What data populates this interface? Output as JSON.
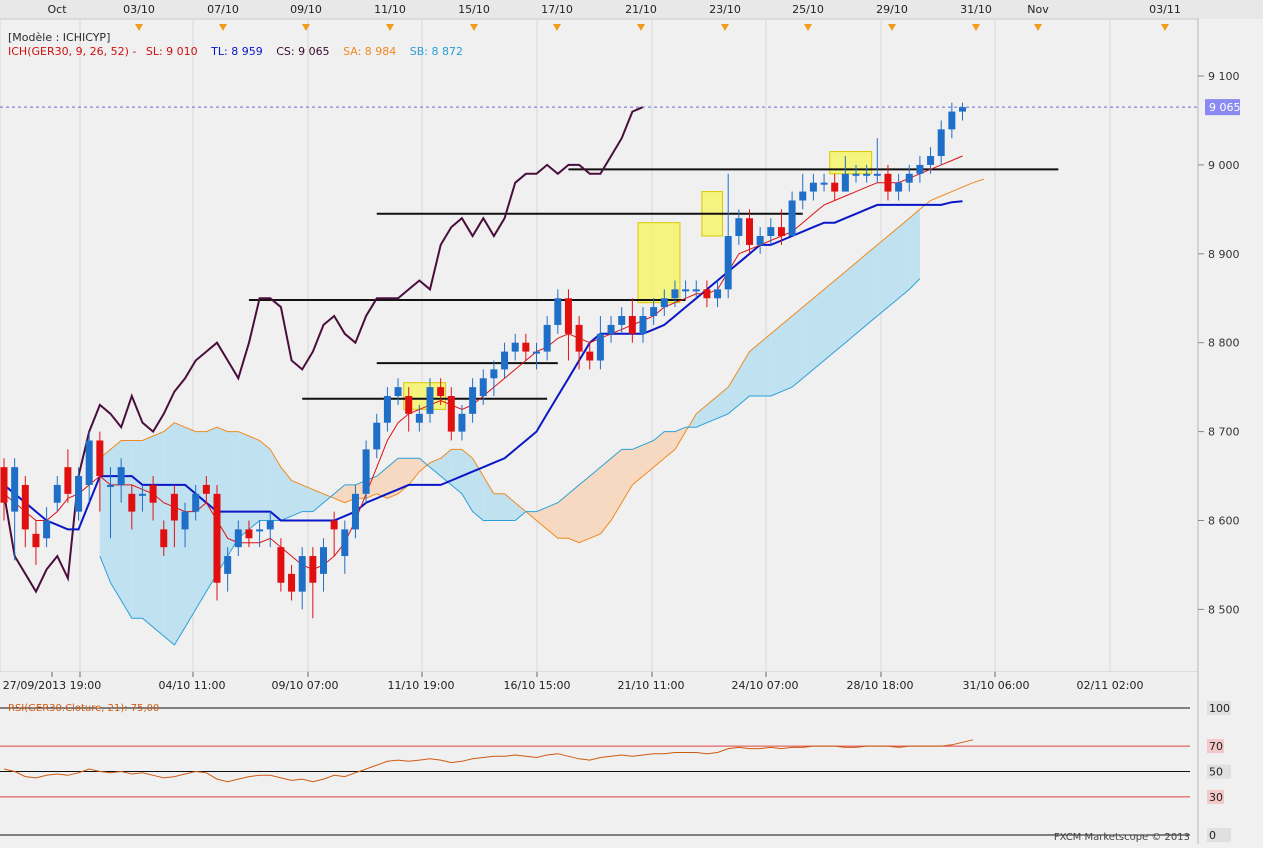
{
  "model_label": "[Modèle : ICHICYP]",
  "ichimoku": {
    "name": "ICH(GER30, 9, 26, 52)",
    "sl_label": "SL: 9 010",
    "tl_label": "TL: 8 959",
    "cs_label": "CS: 9 065",
    "sa_label": "SA: 8 984",
    "sb_label": "SB: 8 872"
  },
  "rsi_label": "RSI(GER30.Cloture, 21): 75,00",
  "footer": "FXCM Marketscope © 2013",
  "price_tag": "9 065",
  "top_dates": [
    "Oct",
    "03/10",
    "07/10",
    "09/10",
    "11/10",
    "15/10",
    "17/10",
    "21/10",
    "23/10",
    "25/10",
    "29/10",
    "31/10",
    "Nov",
    "03/11"
  ],
  "bottom_dates": [
    "27/09/2013 19:00",
    "04/10 11:00",
    "09/10 07:00",
    "11/10 19:00",
    "16/10 15:00",
    "21/10 11:00",
    "24/10 07:00",
    "28/10 18:00",
    "31/10 06:00",
    "02/11 02:00"
  ],
  "rsi_ticks": [
    "100",
    "70",
    "50",
    "30",
    "0"
  ],
  "colors": {
    "background": "#f0f0f0",
    "bull_candle": "#1f6ec8",
    "bear_candle": "#e01010",
    "tenkan": "#e01010",
    "kijun": "#0a17c8",
    "chikou": "#4a0e3c",
    "cloud_bull": "#bfe1f0",
    "cloud_bear": "#f6d9c0",
    "senkou_a": "#f08a1f",
    "senkou_b": "#2aa0d8",
    "rsi_line": "#d05a10",
    "highlight": "#f4f46a"
  },
  "chart_data": {
    "type": "candlestick",
    "y_axis_ticks": [
      "9 100",
      "9 000",
      "8 900",
      "8 800",
      "8 700",
      "8 600",
      "8 500"
    ],
    "ylim": [
      8440,
      9165
    ],
    "current_price": 9065,
    "candles": [
      [
        8660,
        8620,
        8670,
        8600
      ],
      [
        8610,
        8660,
        8670,
        8555
      ],
      [
        8640,
        8590,
        8650,
        8570
      ],
      [
        8585,
        8570,
        8600,
        8550
      ],
      [
        8580,
        8600,
        8615,
        8570
      ],
      [
        8620,
        8640,
        8650,
        8610
      ],
      [
        8660,
        8630,
        8680,
        8620
      ],
      [
        8610,
        8650,
        8660,
        8600
      ],
      [
        8640,
        8690,
        8700,
        8620
      ],
      [
        8690,
        8650,
        8700,
        8610
      ],
      [
        8640,
        8640,
        8660,
        8580
      ],
      [
        8640,
        8660,
        8670,
        8620
      ],
      [
        8630,
        8610,
        8640,
        8590
      ],
      [
        8630,
        8630,
        8640,
        8610
      ],
      [
        8640,
        8620,
        8650,
        8600
      ],
      [
        8590,
        8570,
        8600,
        8560
      ],
      [
        8630,
        8600,
        8640,
        8570
      ],
      [
        8590,
        8610,
        8620,
        8570
      ],
      [
        8610,
        8630,
        8640,
        8600
      ],
      [
        8640,
        8630,
        8650,
        8620
      ],
      [
        8630,
        8530,
        8640,
        8510
      ],
      [
        8540,
        8560,
        8570,
        8520
      ],
      [
        8570,
        8590,
        8600,
        8560
      ],
      [
        8590,
        8580,
        8600,
        8570
      ],
      [
        8590,
        8590,
        8600,
        8570
      ],
      [
        8590,
        8600,
        8610,
        8570
      ],
      [
        8570,
        8530,
        8580,
        8520
      ],
      [
        8540,
        8520,
        8550,
        8510
      ],
      [
        8520,
        8560,
        8570,
        8500
      ],
      [
        8560,
        8530,
        8570,
        8490
      ],
      [
        8540,
        8570,
        8580,
        8520
      ],
      [
        8600,
        8590,
        8610,
        8560
      ],
      [
        8560,
        8590,
        8600,
        8540
      ],
      [
        8590,
        8630,
        8640,
        8580
      ],
      [
        8630,
        8680,
        8690,
        8620
      ],
      [
        8680,
        8710,
        8720,
        8670
      ],
      [
        8710,
        8740,
        8750,
        8700
      ],
      [
        8740,
        8750,
        8760,
        8730
      ],
      [
        8740,
        8720,
        8750,
        8700
      ],
      [
        8710,
        8720,
        8730,
        8700
      ],
      [
        8720,
        8750,
        8760,
        8710
      ],
      [
        8750,
        8740,
        8760,
        8730
      ],
      [
        8740,
        8700,
        8750,
        8690
      ],
      [
        8700,
        8720,
        8730,
        8690
      ],
      [
        8720,
        8750,
        8760,
        8710
      ],
      [
        8740,
        8760,
        8770,
        8730
      ],
      [
        8760,
        8770,
        8780,
        8740
      ],
      [
        8770,
        8790,
        8800,
        8760
      ],
      [
        8790,
        8800,
        8810,
        8780
      ],
      [
        8800,
        8790,
        8810,
        8780
      ],
      [
        8790,
        8790,
        8800,
        8770
      ],
      [
        8790,
        8820,
        8830,
        8780
      ],
      [
        8820,
        8850,
        8860,
        8810
      ],
      [
        8850,
        8810,
        8860,
        8780
      ],
      [
        8820,
        8790,
        8830,
        8770
      ],
      [
        8790,
        8780,
        8800,
        8770
      ],
      [
        8780,
        8810,
        8830,
        8770
      ],
      [
        8810,
        8820,
        8830,
        8800
      ],
      [
        8820,
        8830,
        8840,
        8810
      ],
      [
        8830,
        8810,
        8850,
        8800
      ],
      [
        8810,
        8830,
        8840,
        8800
      ],
      [
        8830,
        8840,
        8850,
        8820
      ],
      [
        8840,
        8850,
        8860,
        8830
      ],
      [
        8850,
        8860,
        8870,
        8840
      ],
      [
        8860,
        8860,
        8870,
        8850
      ],
      [
        8860,
        8860,
        8870,
        8850
      ],
      [
        8860,
        8850,
        8870,
        8840
      ],
      [
        8850,
        8860,
        8870,
        8840
      ],
      [
        8860,
        8920,
        8990,
        8850
      ],
      [
        8920,
        8940,
        8950,
        8910
      ],
      [
        8940,
        8910,
        8950,
        8900
      ],
      [
        8910,
        8920,
        8930,
        8900
      ],
      [
        8920,
        8930,
        8940,
        8910
      ],
      [
        8930,
        8920,
        8950,
        8910
      ],
      [
        8920,
        8960,
        8970,
        8920
      ],
      [
        8960,
        8970,
        8990,
        8950
      ],
      [
        8970,
        8980,
        8990,
        8960
      ],
      [
        8980,
        8980,
        8990,
        8970
      ],
      [
        8980,
        8970,
        8990,
        8960
      ],
      [
        8970,
        8990,
        9010,
        8970
      ],
      [
        8990,
        8990,
        9000,
        8980
      ],
      [
        8990,
        8990,
        9000,
        8980
      ],
      [
        8990,
        8990,
        9030,
        8980
      ],
      [
        8990,
        8970,
        9000,
        8960
      ],
      [
        8970,
        8980,
        8990,
        8960
      ],
      [
        8980,
        8990,
        9000,
        8970
      ],
      [
        8990,
        9000,
        9010,
        8980
      ],
      [
        9000,
        9010,
        9020,
        8990
      ],
      [
        9010,
        9040,
        9050,
        9000
      ],
      [
        9040,
        9060,
        9070,
        9030
      ],
      [
        9060,
        9065,
        9070,
        9050
      ]
    ],
    "tenkan_sen": [
      8630,
      8620,
      8610,
      8600,
      8600,
      8610,
      8625,
      8630,
      8640,
      8650,
      8640,
      8640,
      8640,
      8635,
      8630,
      8620,
      8615,
      8610,
      8610,
      8620,
      8600,
      8580,
      8575,
      8575,
      8575,
      8580,
      8570,
      8560,
      8550,
      8545,
      8550,
      8560,
      8575,
      8600,
      8630,
      8660,
      8690,
      8710,
      8720,
      8725,
      8730,
      8735,
      8730,
      8725,
      8730,
      8740,
      8750,
      8760,
      8770,
      8780,
      8790,
      8795,
      8805,
      8810,
      8805,
      8800,
      8805,
      8810,
      8815,
      8820,
      8825,
      8830,
      8840,
      8845,
      8850,
      8855,
      8855,
      8860,
      8880,
      8900,
      8905,
      8910,
      8915,
      8920,
      8925,
      8935,
      8945,
      8955,
      8960,
      8965,
      8970,
      8975,
      8980,
      8980,
      8980,
      8985,
      8990,
      8995,
      9000,
      9005,
      9010
    ],
    "kijun_sen": [
      8640,
      8630,
      8620,
      8610,
      8600,
      8595,
      8590,
      8590,
      8620,
      8650,
      8650,
      8650,
      8650,
      8640,
      8640,
      8640,
      8640,
      8640,
      8630,
      8620,
      8610,
      8610,
      8610,
      8610,
      8610,
      8610,
      8600,
      8600,
      8600,
      8600,
      8600,
      8600,
      8605,
      8610,
      8620,
      8625,
      8630,
      8635,
      8640,
      8640,
      8640,
      8640,
      8645,
      8650,
      8655,
      8660,
      8665,
      8670,
      8680,
      8690,
      8700,
      8720,
      8740,
      8760,
      8780,
      8800,
      8810,
      8810,
      8810,
      8810,
      8810,
      8815,
      8820,
      8830,
      8840,
      8850,
      8860,
      8870,
      8880,
      8890,
      8900,
      8910,
      8910,
      8915,
      8920,
      8925,
      8930,
      8935,
      8935,
      8940,
      8945,
      8950,
      8955,
      8955,
      8955,
      8955,
      8955,
      8955,
      8955,
      8958,
      8959
    ],
    "chikou_span": [
      8630,
      8560,
      8540,
      8520,
      8545,
      8560,
      8535,
      8650,
      8700,
      8730,
      8720,
      8705,
      8740,
      8710,
      8700,
      8720,
      8745,
      8760,
      8780,
      8790,
      8800,
      8780,
      8760,
      8800,
      8850,
      8850,
      8840,
      8780,
      8770,
      8790,
      8820,
      8830,
      8810,
      8800,
      8830,
      8850,
      8850,
      8850,
      8860,
      8870,
      8860,
      8910,
      8930,
      8940,
      8920,
      8940,
      8920,
      8940,
      8980,
      8990,
      8990,
      9000,
      8990,
      9000,
      9000,
      8990,
      8990,
      9010,
      9030,
      9060,
      9065
    ],
    "senkou_a": [
      8670,
      8680,
      8690,
      8690,
      8690,
      8695,
      8700,
      8710,
      8705,
      8700,
      8700,
      8705,
      8700,
      8700,
      8695,
      8690,
      8680,
      8660,
      8645,
      8640,
      8635,
      8630,
      8625,
      8620,
      8625,
      8625,
      8630,
      8625,
      8630,
      8640,
      8655,
      8665,
      8670,
      8680,
      8680,
      8670,
      8650,
      8630,
      8630,
      8620,
      8610,
      8600,
      8590,
      8580,
      8580,
      8575,
      8580,
      8585,
      8600,
      8620,
      8640,
      8650,
      8660,
      8670,
      8680,
      8700,
      8720,
      8730,
      8740,
      8750,
      8770,
      8790,
      8800,
      8810,
      8820,
      8830,
      8840,
      8850,
      8860,
      8870,
      8880,
      8890,
      8900,
      8910,
      8920,
      8930,
      8940,
      8950,
      8960,
      8965,
      8970,
      8975,
      8980,
      8984
    ],
    "senkou_b": [
      8560,
      8530,
      8510,
      8490,
      8490,
      8480,
      8470,
      8460,
      8480,
      8500,
      8520,
      8540,
      8560,
      8580,
      8590,
      8600,
      8600,
      8600,
      8605,
      8610,
      8610,
      8620,
      8630,
      8640,
      8640,
      8645,
      8650,
      8660,
      8670,
      8670,
      8670,
      8660,
      8650,
      8640,
      8630,
      8610,
      8600,
      8600,
      8600,
      8600,
      8610,
      8610,
      8615,
      8620,
      8630,
      8640,
      8650,
      8660,
      8670,
      8680,
      8680,
      8685,
      8690,
      8700,
      8700,
      8705,
      8705,
      8710,
      8715,
      8720,
      8730,
      8740,
      8740,
      8740,
      8745,
      8750,
      8760,
      8770,
      8780,
      8790,
      8800,
      8810,
      8820,
      8830,
      8840,
      8850,
      8860,
      8872
    ],
    "horizontal_lines": [
      {
        "value": 8995,
        "from_index": 53,
        "to_index": 99
      },
      {
        "value": 8945,
        "from_index": 35,
        "to_index": 75
      },
      {
        "value": 8848,
        "from_index": 23,
        "to_index": 64
      },
      {
        "value": 8777,
        "from_index": 35,
        "to_index": 52
      },
      {
        "value": 8737,
        "from_index": 28,
        "to_index": 51
      }
    ],
    "highlight_boxes": [
      {
        "from_index": 38,
        "to_index": 41,
        "low": 8725,
        "high": 8755
      },
      {
        "from_index": 60,
        "to_index": 63,
        "low": 8845,
        "high": 8935
      },
      {
        "from_index": 66,
        "to_index": 67,
        "low": 8920,
        "high": 8970
      },
      {
        "from_index": 78,
        "to_index": 81,
        "low": 8990,
        "high": 9015
      }
    ],
    "rsi": {
      "ylim": [
        0,
        100
      ],
      "levels": [
        100,
        70,
        50,
        30,
        0
      ],
      "values": [
        52,
        50,
        46,
        45,
        47,
        48,
        47,
        49,
        52,
        50,
        49,
        50,
        48,
        49,
        47,
        45,
        46,
        48,
        50,
        49,
        44,
        42,
        44,
        46,
        47,
        47,
        45,
        43,
        44,
        42,
        44,
        47,
        46,
        49,
        52,
        55,
        58,
        59,
        58,
        59,
        60,
        59,
        57,
        58,
        60,
        61,
        62,
        62,
        63,
        62,
        61,
        63,
        64,
        62,
        60,
        59,
        61,
        62,
        63,
        62,
        63,
        64,
        64,
        65,
        65,
        65,
        64,
        65,
        68,
        69,
        68,
        68,
        69,
        68,
        69,
        69,
        70,
        70,
        70,
        69,
        69,
        70,
        70,
        70,
        69,
        70,
        70,
        70,
        70,
        71,
        73,
        75
      ]
    }
  }
}
